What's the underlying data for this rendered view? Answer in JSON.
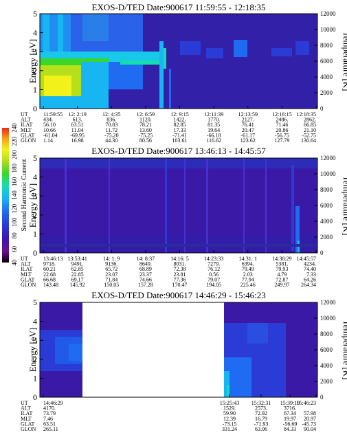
{
  "chart_data": [
    {
      "type": "heatmap",
      "title": "EXOS-D/TED  Date:900617  11:59:55 - 12:18:35",
      "ylabel": "Energy [eV]",
      "y2label": "Temperature [K]",
      "ylim": [
        0,
        5
      ],
      "y2lim": [
        0,
        12000
      ],
      "yticks": [
        "0",
        "1",
        "2",
        "3",
        "4",
        "5"
      ],
      "y2ticks": [
        "0",
        "2000",
        "4000",
        "6000",
        "8000",
        "10000",
        "12000"
      ],
      "orbit_table": {
        "labels": [
          "UT",
          "ALT",
          "ILAT",
          "MLT",
          "GLAT",
          "GLON"
        ],
        "columns": [
          [
            "11:59:55",
            "434.",
            "56.10",
            "10.66",
            "-61.04",
            "1.14"
          ],
          [
            "12: 2:19",
            "613.",
            "63.51",
            "11.04",
            "-69.95",
            "16.98"
          ],
          [
            "12: 4:35",
            "836.",
            "70.83",
            "11.72",
            "-75.20",
            "44.30"
          ],
          [
            "12: 6:59",
            "1120.",
            "78.21",
            "13.60",
            "-75.25",
            "80.56"
          ],
          [
            "12: 9:15",
            "1422.",
            "82.85",
            "17.33",
            "-71.41",
            "103.61"
          ],
          [
            "12:11:39",
            "1770.",
            "81.35",
            "19.64",
            "-66.18",
            "116.62"
          ],
          [
            "12:13:59",
            "2127.",
            "76.41",
            "20.47",
            "-61.17",
            "123.62"
          ],
          [
            "12:16:15",
            "2486.",
            "71.46",
            "20.86",
            "-56.75",
            "127.79"
          ],
          [
            "12:18:35",
            "2862.",
            "66.85",
            "21.10",
            "-52.75",
            "130.64"
          ]
        ]
      }
    },
    {
      "type": "heatmap",
      "title": "EXOS-D/TED  Date:900617  13:46:13 - 14:45:57",
      "ylabel": "Energy [eV]",
      "y2label": "Temperature [K]",
      "ylim": [
        0,
        5
      ],
      "y2lim": [
        0,
        12000
      ],
      "yticks": [
        "0",
        "1",
        "2",
        "3",
        "4",
        "5"
      ],
      "y2ticks": [
        "0",
        "2000",
        "4000",
        "6000",
        "8000",
        "10000",
        "12000"
      ],
      "orbit_table": {
        "labels": [
          "UT",
          "ALT",
          "ILAT",
          "MLT",
          "GLAT",
          "GLON"
        ],
        "columns": [
          [
            "13:46:13",
            "9718.",
            "60.21",
            "22.68",
            "66.68",
            "143.48"
          ],
          [
            "13:53:41",
            "9491.",
            "62.85",
            "22.85",
            "69.17",
            "145.92"
          ],
          [
            "14: 1: 9",
            "9136.",
            "65.72",
            "23.07",
            "71.84",
            "150.05"
          ],
          [
            "14: 8:37",
            "8649.",
            "68.89",
            "23.37",
            "74.66",
            "157.28"
          ],
          [
            "14:16: 5",
            "8031.",
            "72.38",
            "23.81",
            "77.36",
            "170.47"
          ],
          [
            "14:23:33",
            "7279.",
            "76.12",
            "0.56",
            "79.07",
            "194.05"
          ],
          [
            "14:31: 1",
            "6394.",
            "79.49",
            "2.03",
            "77.94",
            "225.46"
          ],
          [
            "14:38:29",
            "5381.",
            "79.93",
            "4.79",
            "72.87",
            "249.97"
          ],
          [
            "14:45:57",
            "4234.",
            "74.40",
            "7.33",
            "64.26",
            "264.34"
          ]
        ]
      }
    },
    {
      "type": "heatmap",
      "title": "EXOS-D/TED  Date:900617  14:46:29 - 15:46:23",
      "ylabel": "Energy [eV]",
      "y2label": "Temperature [K]",
      "ylim": [
        0,
        5
      ],
      "y2lim": [
        0,
        12000
      ],
      "yticks": [
        "0",
        "1",
        "2",
        "3",
        "4",
        "5"
      ],
      "y2ticks": [
        "0",
        "2000",
        "4000",
        "6000",
        "8000",
        "10000",
        "12000"
      ],
      "orbit_table": {
        "labels": [
          "UT",
          "ALT",
          "ILAT",
          "MLT",
          "GLAT",
          "GLON"
        ],
        "columns": [
          [
            "14:46:29",
            "4170.",
            "73.79",
            "7.46",
            "63.51",
            "265.11"
          ],
          [
            "15:25:43",
            "1529.",
            "59.90",
            "12.39",
            "-73.15",
            "331.24"
          ],
          [
            "15:32:31",
            "2573.",
            "72.92",
            "16.79",
            "-71.93",
            "63.06"
          ],
          [
            "15:39:19",
            "3716.",
            "67.34",
            "19.97",
            "-56.69",
            "84.33"
          ],
          [
            "15:46:23",
            "",
            "57.98",
            "20.97",
            "-45.73",
            "90.04"
          ]
        ]
      }
    }
  ],
  "colorbar": {
    "label": "Second Harmonic Current",
    "ticks": [
      "40",
      "60",
      "80",
      "100",
      "120",
      "140",
      "160",
      "180",
      "200",
      "220",
      "240"
    ],
    "colors": [
      "#000000",
      "#6a0f8c",
      "#3a17b4",
      "#2a3bd6",
      "#1f6cf2",
      "#17b6f2",
      "#14ddb0",
      "#3ad62a",
      "#b6e01a",
      "#f2f21a",
      "#f5a018",
      "#ee2a14"
    ]
  },
  "data_visible": [
    {
      "from": 0,
      "to": 1
    },
    {
      "from": 0,
      "to": 1
    },
    {
      "segments": [
        [
          0,
          0.175
        ],
        [
          0.59,
          1
        ]
      ]
    }
  ]
}
